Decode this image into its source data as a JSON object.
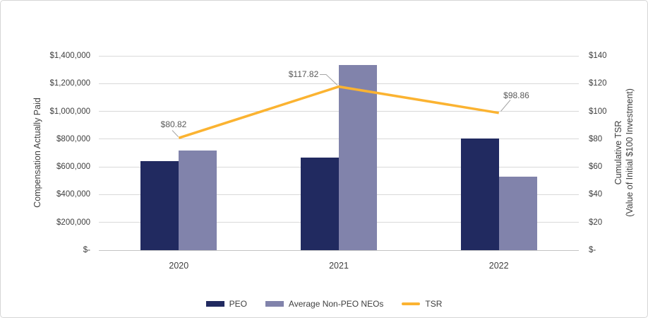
{
  "chart_data": {
    "type": "bar",
    "subtype": "combo-bar-line",
    "categories": [
      "2020",
      "2021",
      "2022"
    ],
    "series": [
      {
        "name": "PEO",
        "type": "bar",
        "axis": "left",
        "color": "#212A60",
        "values": [
          640000,
          665000,
          805000
        ]
      },
      {
        "name": "Average Non-PEO NEOs",
        "type": "bar",
        "axis": "left",
        "color": "#8183AB",
        "values": [
          720000,
          1335000,
          530000
        ]
      },
      {
        "name": "TSR",
        "type": "line",
        "axis": "right",
        "color": "#FBB331",
        "values": [
          80.82,
          117.82,
          98.86
        ],
        "point_labels": [
          "$80.82",
          "$117.82",
          "$98.86"
        ]
      }
    ],
    "left_axis": {
      "title": "Compensation Actually Paid",
      "min": 0,
      "max": 1400000,
      "step": 200000,
      "tick_labels": [
        "$1,400,000",
        "$1,200,000",
        "$1,000,000",
        "$800,000",
        "$600,000",
        "$400,000",
        "$200,000",
        "$-"
      ],
      "tick_values": [
        1400000,
        1200000,
        1000000,
        800000,
        600000,
        400000,
        200000,
        0
      ]
    },
    "right_axis": {
      "title_lines": [
        "Cumulative TSR",
        "(Value of Initial $100 Investment)"
      ],
      "min": 0,
      "max": 140,
      "step": 20,
      "tick_labels": [
        "$140",
        "$120",
        "$100",
        "$80",
        "$60",
        "$40",
        "$20",
        "$-"
      ],
      "tick_values": [
        140,
        120,
        100,
        80,
        60,
        40,
        20,
        0
      ]
    },
    "legend": {
      "position": "bottom",
      "items": [
        {
          "label": "PEO",
          "swatch": "bar",
          "color": "#212A60"
        },
        {
          "label": "Average Non-PEO NEOs",
          "swatch": "bar",
          "color": "#8183AB"
        },
        {
          "label": "TSR",
          "swatch": "line",
          "color": "#FBB331"
        }
      ]
    },
    "grid": true
  },
  "colors": {
    "background": "#FFFFFF",
    "border": "#D6D6D6",
    "gridline": "#D9D9D9",
    "axis_line": "#C4C4C4",
    "tick_text": "#3F3F3F",
    "data_label_text": "#595959",
    "leader_line": "#A6A6A6"
  }
}
